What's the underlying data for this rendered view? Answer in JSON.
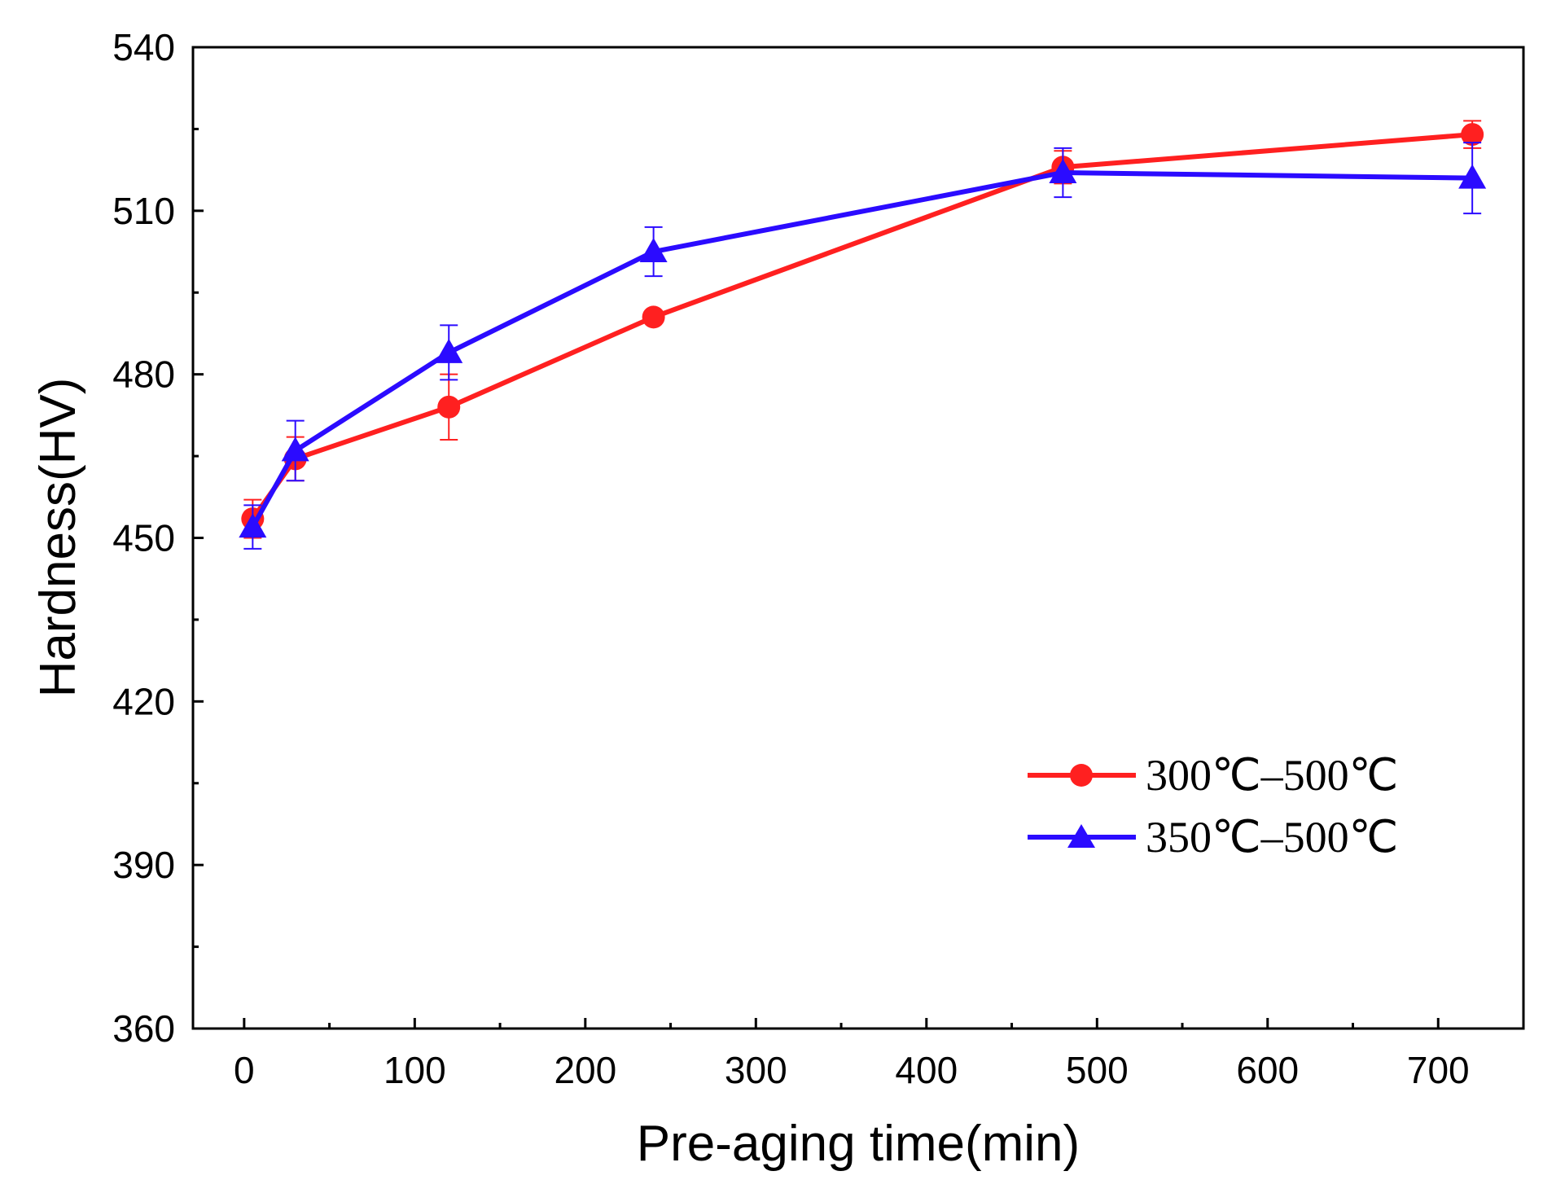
{
  "chart_data": {
    "type": "line",
    "title": "",
    "xlabel": "Pre-aging time(min)",
    "ylabel": "Hardness(HV)",
    "xlim": [
      -30,
      750
    ],
    "ylim": [
      360,
      540
    ],
    "xticks": [
      0,
      100,
      200,
      300,
      400,
      500,
      600,
      700
    ],
    "xtick_labels": [
      "0",
      "100",
      "200",
      "300",
      "400",
      "500",
      "600",
      "700"
    ],
    "yticks": [
      360,
      390,
      420,
      450,
      480,
      510,
      540
    ],
    "ytick_labels": [
      "360",
      "390",
      "420",
      "450",
      "480",
      "510",
      "540"
    ],
    "grid": false,
    "legend_position": "bottom-right",
    "series": [
      {
        "name": "300℃–500℃",
        "color": "#ff2020",
        "marker": "circle",
        "x": [
          5,
          30,
          120,
          240,
          480,
          720
        ],
        "y": [
          453.5,
          464.5,
          474,
          490.5,
          518,
          524
        ],
        "err": [
          3.5,
          4.0,
          6.0,
          0.5,
          3.0,
          2.5
        ]
      },
      {
        "name": "350℃–500℃",
        "color": "#2b0bff",
        "marker": "triangle",
        "x": [
          5,
          30,
          120,
          240,
          480,
          720
        ],
        "y": [
          452,
          466,
          484,
          502.5,
          517,
          516
        ],
        "err": [
          4.0,
          5.5,
          5.0,
          4.5,
          4.5,
          6.5
        ]
      }
    ]
  }
}
